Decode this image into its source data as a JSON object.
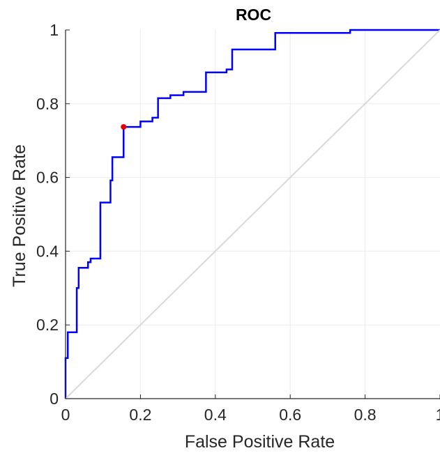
{
  "chart_data": {
    "type": "line",
    "title": "ROC",
    "xlabel": "False Positive Rate",
    "ylabel": "True Positive Rate",
    "xlim": [
      0,
      1
    ],
    "ylim": [
      0,
      1
    ],
    "x_ticks": [
      "0",
      "0.2",
      "0.4",
      "0.6",
      "0.8",
      "1"
    ],
    "y_ticks": [
      "0",
      "0.2",
      "0.4",
      "0.6",
      "0.8",
      "1"
    ],
    "grid": true,
    "series": [
      {
        "style": "step",
        "color": "#0000ff",
        "points": [
          [
            0,
            0
          ],
          [
            0,
            0.11
          ],
          [
            0.006,
            0.11
          ],
          [
            0.006,
            0.18
          ],
          [
            0.03,
            0.18
          ],
          [
            0.03,
            0.3
          ],
          [
            0.035,
            0.3
          ],
          [
            0.035,
            0.355
          ],
          [
            0.06,
            0.355
          ],
          [
            0.06,
            0.37
          ],
          [
            0.067,
            0.37
          ],
          [
            0.067,
            0.38
          ],
          [
            0.093,
            0.38
          ],
          [
            0.093,
            0.532
          ],
          [
            0.12,
            0.532
          ],
          [
            0.12,
            0.592
          ],
          [
            0.125,
            0.592
          ],
          [
            0.125,
            0.655
          ],
          [
            0.155,
            0.655
          ],
          [
            0.155,
            0.737
          ],
          [
            0.2,
            0.737
          ],
          [
            0.2,
            0.752
          ],
          [
            0.232,
            0.752
          ],
          [
            0.232,
            0.762
          ],
          [
            0.247,
            0.762
          ],
          [
            0.247,
            0.815
          ],
          [
            0.28,
            0.815
          ],
          [
            0.28,
            0.823
          ],
          [
            0.315,
            0.823
          ],
          [
            0.315,
            0.832
          ],
          [
            0.375,
            0.832
          ],
          [
            0.375,
            0.885
          ],
          [
            0.43,
            0.885
          ],
          [
            0.43,
            0.893
          ],
          [
            0.445,
            0.893
          ],
          [
            0.445,
            0.947
          ],
          [
            0.56,
            0.947
          ],
          [
            0.56,
            0.992
          ],
          [
            0.76,
            0.992
          ],
          [
            0.76,
            1.0
          ],
          [
            1.0,
            1.0
          ]
        ]
      },
      {
        "style": "line",
        "color": "#d9d9d9",
        "points": [
          [
            0,
            0
          ],
          [
            1,
            1
          ]
        ]
      }
    ],
    "markers": [
      {
        "x": 0.155,
        "y": 0.737,
        "color": "#e00000"
      }
    ]
  }
}
